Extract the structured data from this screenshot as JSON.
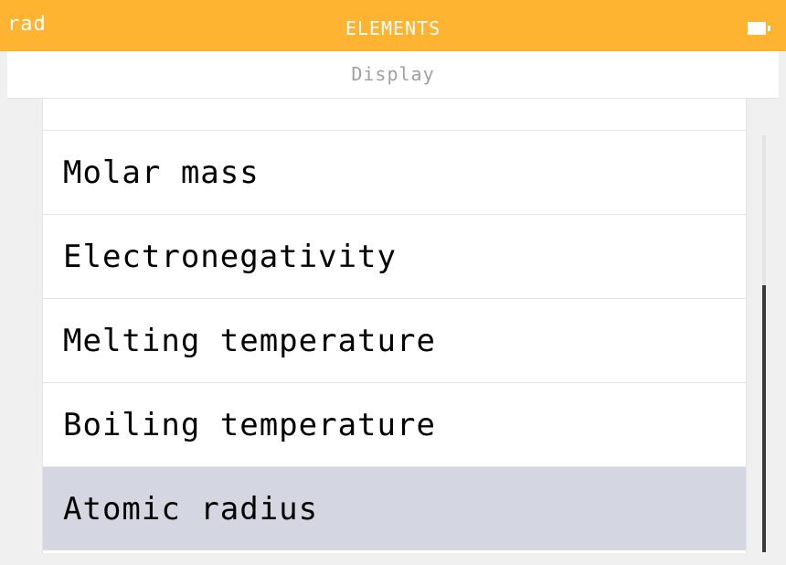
{
  "status_bar": {
    "angle_mode": "rad",
    "title": "ELEMENTS",
    "battery_icon": "battery-icon",
    "color": "#feb331"
  },
  "subheader": {
    "title": "Display"
  },
  "list": {
    "items": [
      {
        "label": "",
        "selected": false
      },
      {
        "label": "Molar mass",
        "selected": false
      },
      {
        "label": "Electronegativity",
        "selected": false
      },
      {
        "label": "Melting temperature",
        "selected": false
      },
      {
        "label": "Boiling temperature",
        "selected": false
      },
      {
        "label": "Atomic radius",
        "selected": true
      }
    ],
    "selected_color": "#d4d6e2"
  },
  "scrollbar": {
    "thumb_start_fraction": 0.36,
    "thumb_end_fraction": 1.0
  }
}
